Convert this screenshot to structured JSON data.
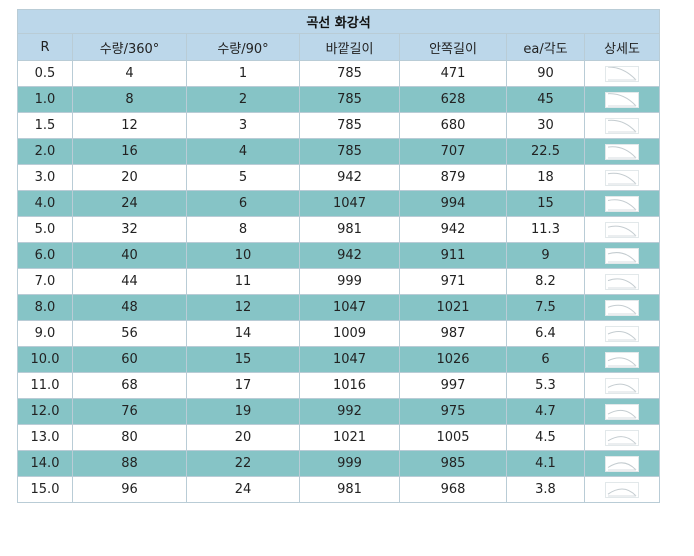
{
  "table": {
    "title": "곡선 화강석",
    "headers": [
      "R",
      "수량/360°",
      "수량/90°",
      "바깥길이",
      "안쪽길이",
      "ea/각도",
      "상세도"
    ],
    "rows": [
      {
        "r": "0.5",
        "q360": "4",
        "q90": "1",
        "outer": "785",
        "inner": "471",
        "angle": "90",
        "detail": "curve-thumbnail"
      },
      {
        "r": "1.0",
        "q360": "8",
        "q90": "2",
        "outer": "785",
        "inner": "628",
        "angle": "45",
        "detail": "curve-thumbnail"
      },
      {
        "r": "1.5",
        "q360": "12",
        "q90": "3",
        "outer": "785",
        "inner": "680",
        "angle": "30",
        "detail": "curve-thumbnail"
      },
      {
        "r": "2.0",
        "q360": "16",
        "q90": "4",
        "outer": "785",
        "inner": "707",
        "angle": "22.5",
        "detail": "curve-thumbnail"
      },
      {
        "r": "3.0",
        "q360": "20",
        "q90": "5",
        "outer": "942",
        "inner": "879",
        "angle": "18",
        "detail": "curve-thumbnail"
      },
      {
        "r": "4.0",
        "q360": "24",
        "q90": "6",
        "outer": "1047",
        "inner": "994",
        "angle": "15",
        "detail": "curve-thumbnail"
      },
      {
        "r": "5.0",
        "q360": "32",
        "q90": "8",
        "outer": "981",
        "inner": "942",
        "angle": "11.3",
        "detail": "curve-thumbnail"
      },
      {
        "r": "6.0",
        "q360": "40",
        "q90": "10",
        "outer": "942",
        "inner": "911",
        "angle": "9",
        "detail": "curve-thumbnail"
      },
      {
        "r": "7.0",
        "q360": "44",
        "q90": "11",
        "outer": "999",
        "inner": "971",
        "angle": "8.2",
        "detail": "curve-thumbnail"
      },
      {
        "r": "8.0",
        "q360": "48",
        "q90": "12",
        "outer": "1047",
        "inner": "1021",
        "angle": "7.5",
        "detail": "curve-thumbnail"
      },
      {
        "r": "9.0",
        "q360": "56",
        "q90": "14",
        "outer": "1009",
        "inner": "987",
        "angle": "6.4",
        "detail": "curve-thumbnail"
      },
      {
        "r": "10.0",
        "q360": "60",
        "q90": "15",
        "outer": "1047",
        "inner": "1026",
        "angle": "6",
        "detail": "curve-thumbnail"
      },
      {
        "r": "11.0",
        "q360": "68",
        "q90": "17",
        "outer": "1016",
        "inner": "997",
        "angle": "5.3",
        "detail": "curve-thumbnail"
      },
      {
        "r": "12.0",
        "q360": "76",
        "q90": "19",
        "outer": "992",
        "inner": "975",
        "angle": "4.7",
        "detail": "curve-thumbnail"
      },
      {
        "r": "13.0",
        "q360": "80",
        "q90": "20",
        "outer": "1021",
        "inner": "1005",
        "angle": "4.5",
        "detail": "curve-thumbnail"
      },
      {
        "r": "14.0",
        "q360": "88",
        "q90": "22",
        "outer": "999",
        "inner": "985",
        "angle": "4.1",
        "detail": "curve-thumbnail"
      },
      {
        "r": "15.0",
        "q360": "96",
        "q90": "24",
        "outer": "981",
        "inner": "968",
        "angle": "3.8",
        "detail": "curve-thumbnail"
      }
    ]
  },
  "colors": {
    "header_bg": "#bcd7ea",
    "alt_row_bg": "#86c4c6",
    "row_bg": "#ffffff",
    "border": "#b9ccd6"
  }
}
